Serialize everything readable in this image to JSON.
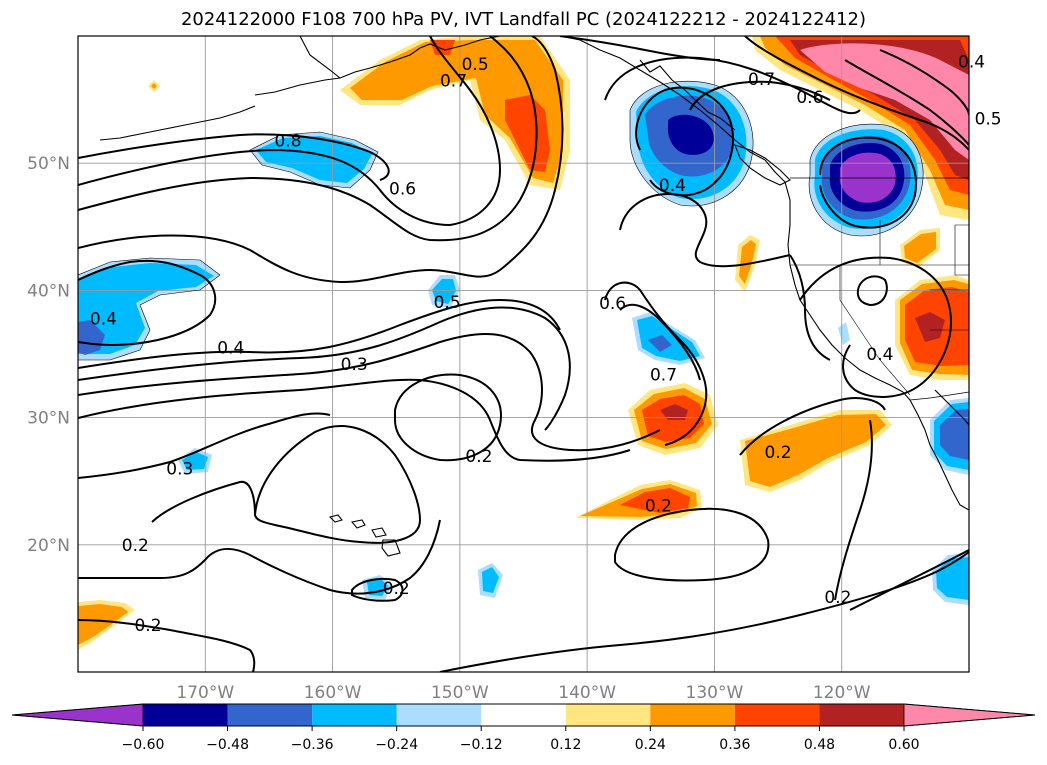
{
  "title": "2024122000 F108 700 hPa PV, IVT Landfall PC (2024122212 - 2024122412)",
  "map": {
    "lat_min": 10,
    "lat_max": 60,
    "lon_min": -180,
    "lon_max": -110,
    "lat_ticks": [
      "20°N",
      "30°N",
      "40°N",
      "50°N"
    ],
    "lat_tick_values": [
      20,
      30,
      40,
      50
    ],
    "lon_ticks": [
      "170°W",
      "160°W",
      "150°W",
      "140°W",
      "130°W",
      "120°W"
    ],
    "lon_tick_values": [
      -170,
      -160,
      -150,
      -140,
      -130,
      -120
    ],
    "gridlines": true
  },
  "colorbar": {
    "levels": [
      "−0.60",
      "−0.48",
      "−0.36",
      "−0.24",
      "−0.12",
      "0.12",
      "0.24",
      "0.36",
      "0.48",
      "0.60"
    ],
    "level_values": [
      -0.6,
      -0.48,
      -0.36,
      -0.24,
      -0.12,
      0.12,
      0.24,
      0.36,
      0.48,
      0.6
    ],
    "colors": [
      "#9933cc",
      "#000099",
      "#3366cc",
      "#00bbff",
      "#aaddff",
      "#ffffff",
      "#ffe680",
      "#ff9900",
      "#ff4400",
      "#b22222",
      "#ff88aa"
    ],
    "extend": "both"
  },
  "contour_labels": [
    {
      "text": "0.8",
      "lon": -163.5,
      "lat": 51.8
    },
    {
      "text": "0.7",
      "lon": -150.5,
      "lat": 56.5
    },
    {
      "text": "0.6",
      "lon": -154.5,
      "lat": 48.0
    },
    {
      "text": "0.5",
      "lon": -148.8,
      "lat": 57.8
    },
    {
      "text": "0.7",
      "lon": -126.3,
      "lat": 56.6
    },
    {
      "text": "0.6",
      "lon": -122.5,
      "lat": 55.2
    },
    {
      "text": "0.4",
      "lon": -109.8,
      "lat": 58.0
    },
    {
      "text": "0.5",
      "lon": -108.5,
      "lat": 53.5
    },
    {
      "text": "0.4",
      "lon": -133.3,
      "lat": 48.3
    },
    {
      "text": "0.5",
      "lon": -151.0,
      "lat": 39.1
    },
    {
      "text": "0.6",
      "lon": -138.0,
      "lat": 39.0
    },
    {
      "text": "0.4",
      "lon": -178.0,
      "lat": 37.8
    },
    {
      "text": "0.4",
      "lon": -168.0,
      "lat": 35.5
    },
    {
      "text": "0.3",
      "lon": -158.3,
      "lat": 34.2
    },
    {
      "text": "0.7",
      "lon": -134.0,
      "lat": 33.4
    },
    {
      "text": "0.2",
      "lon": -148.5,
      "lat": 27.0
    },
    {
      "text": "0.2",
      "lon": -125.0,
      "lat": 27.3
    },
    {
      "text": "0.4",
      "lon": -117.0,
      "lat": 35.0
    },
    {
      "text": "0.3",
      "lon": -172.0,
      "lat": 26.0
    },
    {
      "text": "0.2",
      "lon": -175.5,
      "lat": 20.0
    },
    {
      "text": "0.2",
      "lon": -134.4,
      "lat": 23.1
    },
    {
      "text": "0.2",
      "lon": -155.0,
      "lat": 16.6
    },
    {
      "text": "0.2",
      "lon": -174.5,
      "lat": 13.7
    },
    {
      "text": "0.2",
      "lon": -120.3,
      "lat": 15.9
    }
  ]
}
